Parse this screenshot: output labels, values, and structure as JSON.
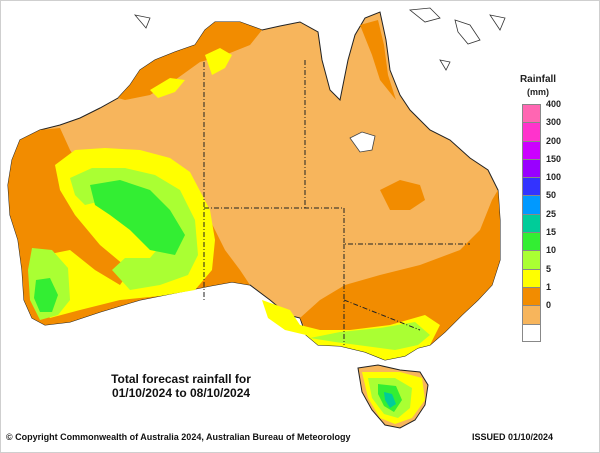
{
  "legend": {
    "title_line1": "Rainfall",
    "title_line2": "(mm)",
    "bins": [
      {
        "label": "400",
        "color": "#ff66b2"
      },
      {
        "label": "300",
        "color": "#ff33cc"
      },
      {
        "label": "200",
        "color": "#cc00ff"
      },
      {
        "label": "150",
        "color": "#9900ff"
      },
      {
        "label": "100",
        "color": "#3333ff"
      },
      {
        "label": "50",
        "color": "#0099ff"
      },
      {
        "label": "25",
        "color": "#00cc99"
      },
      {
        "label": "15",
        "color": "#33ee33"
      },
      {
        "label": "10",
        "color": "#aaff33"
      },
      {
        "label": "5",
        "color": "#ffff00"
      },
      {
        "label": "1",
        "color": "#f28c00"
      },
      {
        "label": "0",
        "color": "#f7b55c"
      }
    ],
    "bottom_color": "#ffffff"
  },
  "caption": {
    "line1": "Total forecast rainfall for",
    "line2": "01/10/2024 to 08/10/2024"
  },
  "footer": {
    "copyright": "© Copyright Commonwealth of Australia 2024, Australian Bureau of Meteorology",
    "issued": "ISSUED 01/10/2024"
  }
}
